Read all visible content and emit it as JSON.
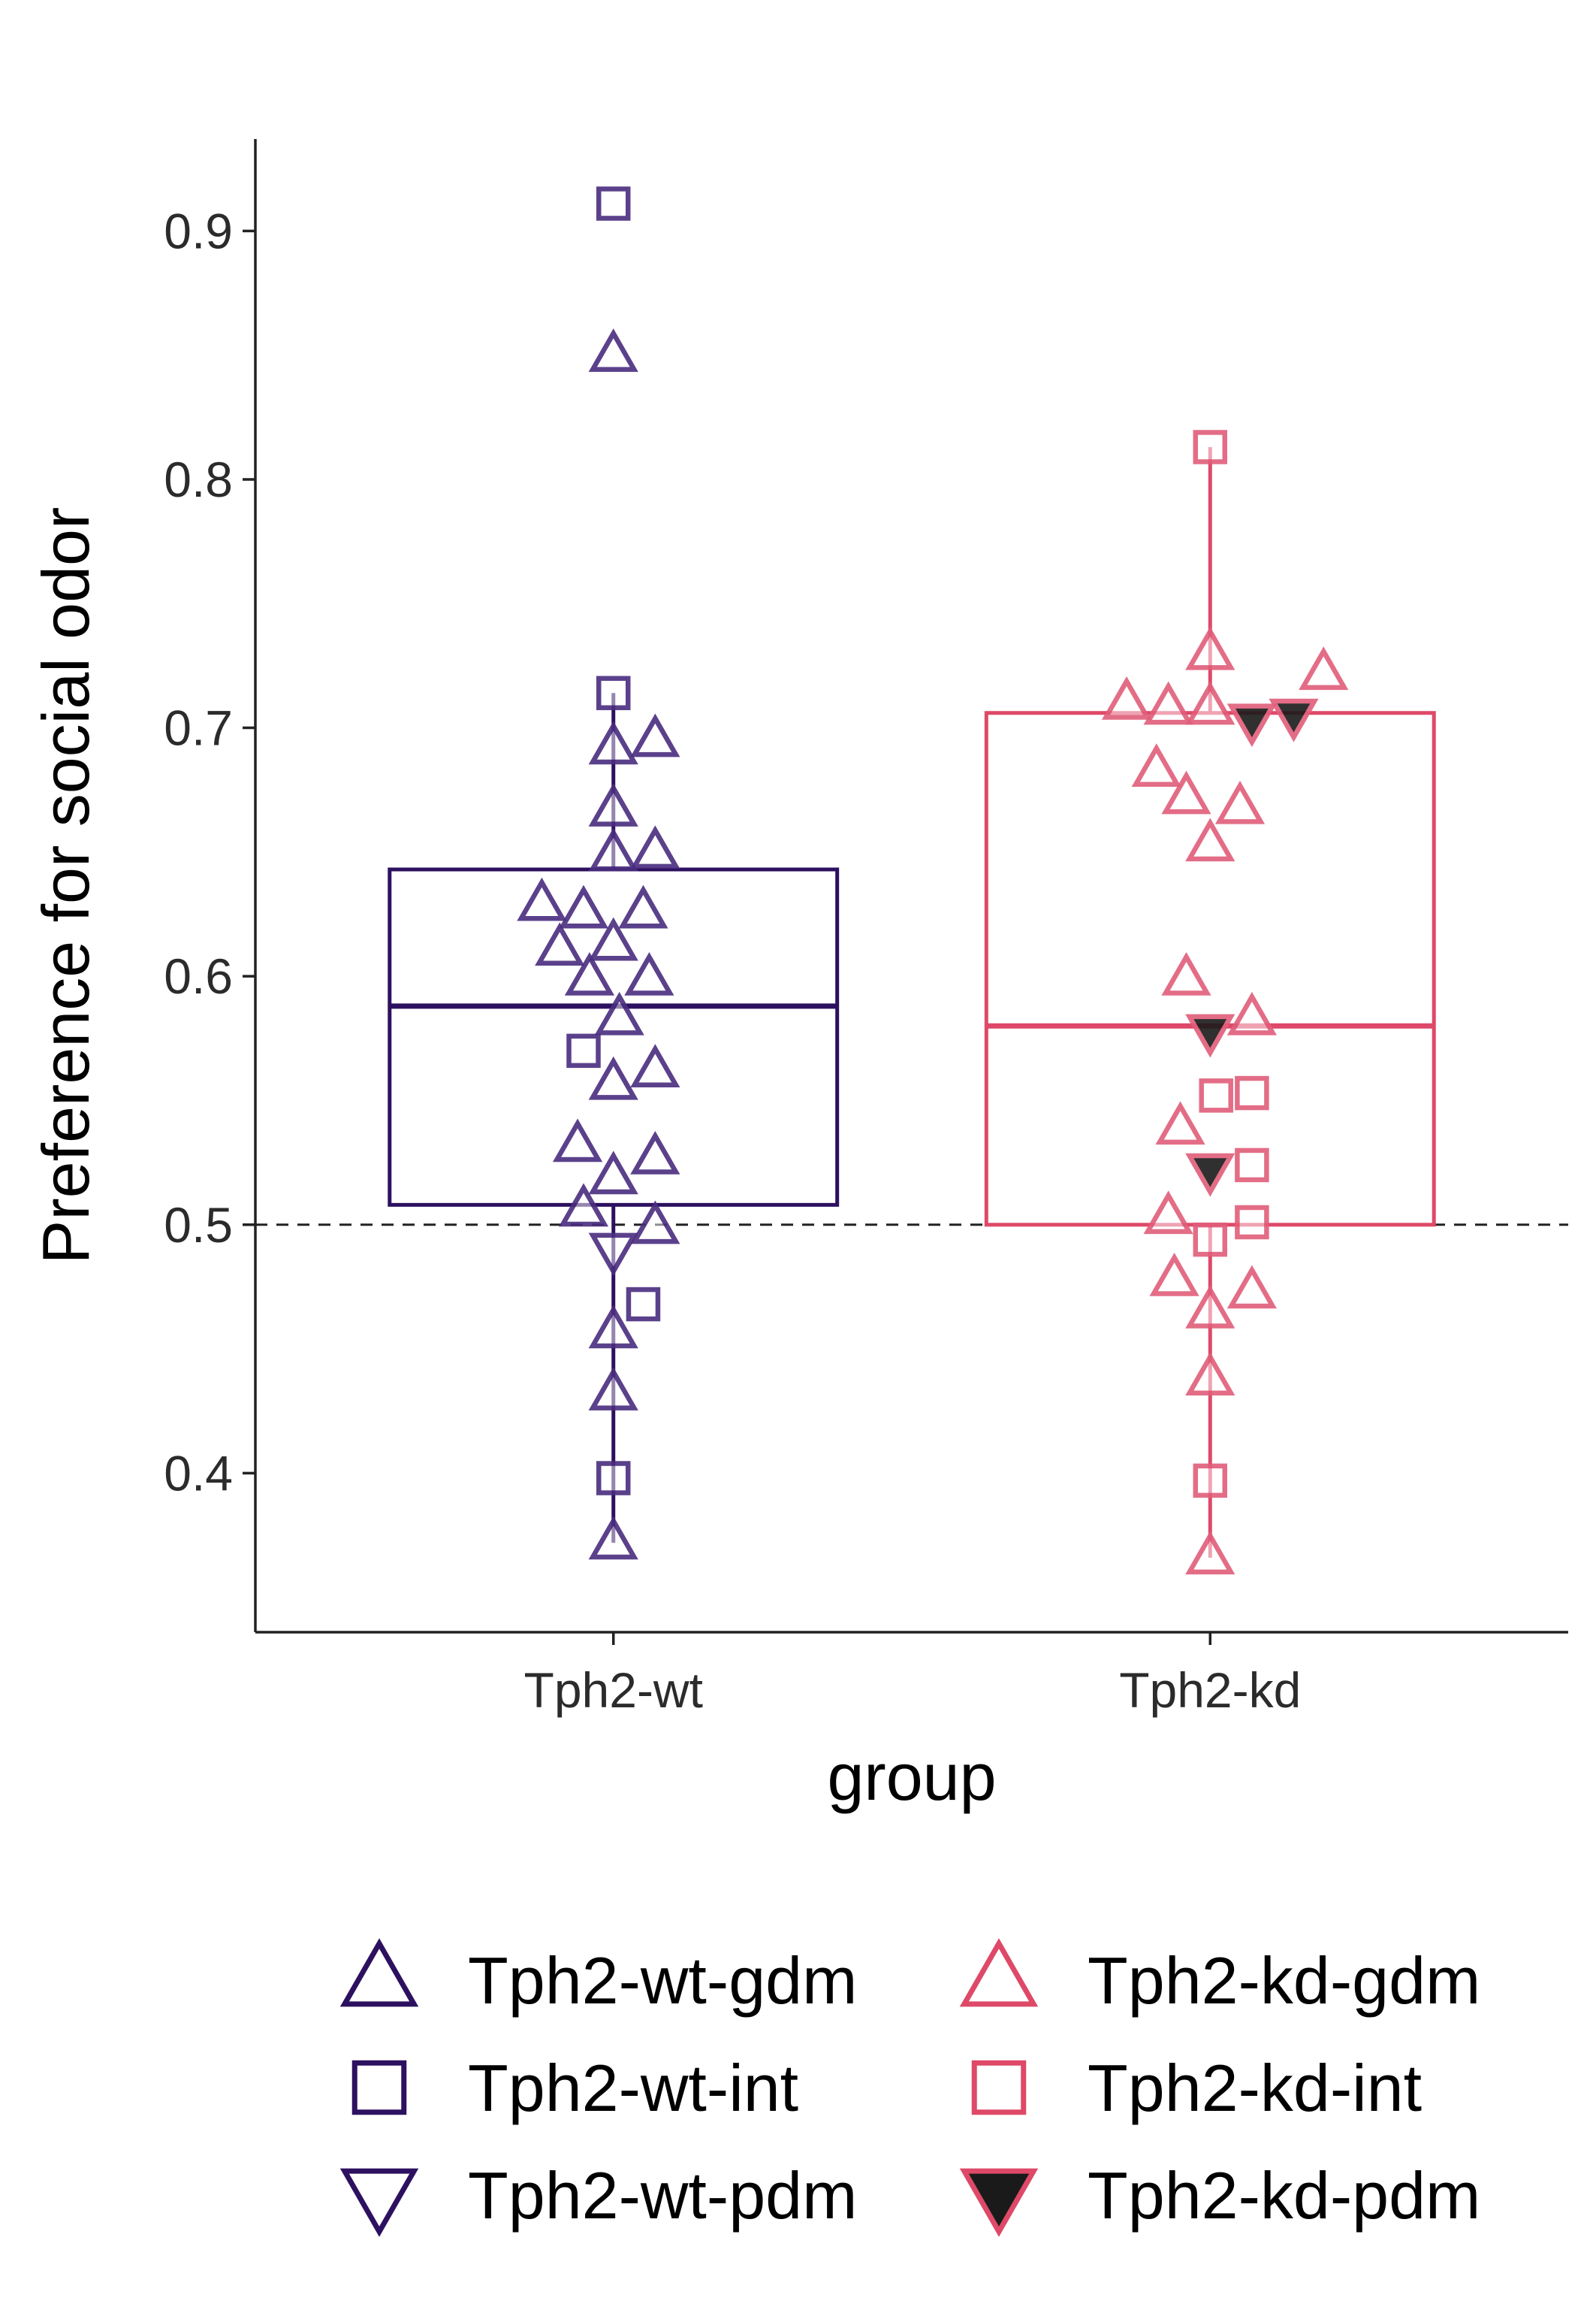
{
  "chart_data": {
    "type": "box",
    "xlabel": "group",
    "ylabel": "Preference for social odor",
    "ylim": [
      0.336,
      0.937
    ],
    "yticks": [
      "0.4",
      "0.5",
      "0.6",
      "0.7",
      "0.8",
      "0.9"
    ],
    "categories": [
      "Tph2-wt",
      "Tph2-kd"
    ],
    "reference_line": 0.5,
    "groups": [
      {
        "name": "Tph2-wt",
        "color": "#2d1160",
        "box": {
          "lower": 0.372,
          "q1": 0.508,
          "median": 0.588,
          "q3": 0.643,
          "upper": 0.714
        },
        "points": [
          {
            "x": 0.0,
            "y": 0.911,
            "shape": "square",
            "fill": "none"
          },
          {
            "x": 0.0,
            "y": 0.85,
            "shape": "triangle-up",
            "fill": "none"
          },
          {
            "x": 0.0,
            "y": 0.714,
            "shape": "square",
            "fill": "none"
          },
          {
            "x": 0.0,
            "y": 0.692,
            "shape": "triangle-up",
            "fill": "none"
          },
          {
            "x": 0.07,
            "y": 0.695,
            "shape": "triangle-up",
            "fill": "none"
          },
          {
            "x": 0.0,
            "y": 0.667,
            "shape": "triangle-up",
            "fill": "none"
          },
          {
            "x": 0.0,
            "y": 0.649,
            "shape": "triangle-up",
            "fill": "none"
          },
          {
            "x": 0.07,
            "y": 0.65,
            "shape": "triangle-up",
            "fill": "none"
          },
          {
            "x": -0.12,
            "y": 0.629,
            "shape": "triangle-up",
            "fill": "none"
          },
          {
            "x": -0.05,
            "y": 0.626,
            "shape": "triangle-up",
            "fill": "none"
          },
          {
            "x": 0.05,
            "y": 0.626,
            "shape": "triangle-up",
            "fill": "none"
          },
          {
            "x": -0.09,
            "y": 0.611,
            "shape": "triangle-up",
            "fill": "none"
          },
          {
            "x": 0.0,
            "y": 0.613,
            "shape": "triangle-up",
            "fill": "none"
          },
          {
            "x": -0.04,
            "y": 0.599,
            "shape": "triangle-up",
            "fill": "none"
          },
          {
            "x": 0.06,
            "y": 0.599,
            "shape": "triangle-up",
            "fill": "none"
          },
          {
            "x": 0.01,
            "y": 0.583,
            "shape": "triangle-up",
            "fill": "none"
          },
          {
            "x": -0.05,
            "y": 0.57,
            "shape": "square",
            "fill": "none"
          },
          {
            "x": 0.0,
            "y": 0.557,
            "shape": "triangle-up",
            "fill": "none"
          },
          {
            "x": 0.07,
            "y": 0.562,
            "shape": "triangle-up",
            "fill": "none"
          },
          {
            "x": -0.06,
            "y": 0.532,
            "shape": "triangle-up",
            "fill": "none"
          },
          {
            "x": 0.07,
            "y": 0.527,
            "shape": "triangle-up",
            "fill": "none"
          },
          {
            "x": 0.0,
            "y": 0.519,
            "shape": "triangle-up",
            "fill": "none"
          },
          {
            "x": -0.05,
            "y": 0.506,
            "shape": "triangle-up",
            "fill": "none"
          },
          {
            "x": 0.07,
            "y": 0.499,
            "shape": "triangle-up",
            "fill": "none"
          },
          {
            "x": 0.0,
            "y": 0.49,
            "shape": "triangle-down",
            "fill": "none"
          },
          {
            "x": 0.05,
            "y": 0.468,
            "shape": "square",
            "fill": "none"
          },
          {
            "x": 0.0,
            "y": 0.457,
            "shape": "triangle-up",
            "fill": "none"
          },
          {
            "x": 0.0,
            "y": 0.432,
            "shape": "triangle-up",
            "fill": "none"
          },
          {
            "x": 0.0,
            "y": 0.398,
            "shape": "square",
            "fill": "none"
          },
          {
            "x": 0.0,
            "y": 0.372,
            "shape": "triangle-up",
            "fill": "none"
          }
        ]
      },
      {
        "name": "Tph2-kd",
        "color": "#de4968",
        "box": {
          "lower": 0.366,
          "q1": 0.5,
          "median": 0.58,
          "q3": 0.706,
          "upper": 0.813
        },
        "points": [
          {
            "x": 0.0,
            "y": 0.813,
            "shape": "square",
            "fill": "none"
          },
          {
            "x": 0.0,
            "y": 0.73,
            "shape": "triangle-up",
            "fill": "none"
          },
          {
            "x": 0.19,
            "y": 0.722,
            "shape": "triangle-up",
            "fill": "none"
          },
          {
            "x": -0.14,
            "y": 0.71,
            "shape": "triangle-up",
            "fill": "none"
          },
          {
            "x": -0.07,
            "y": 0.708,
            "shape": "triangle-up",
            "fill": "none"
          },
          {
            "x": 0.0,
            "y": 0.708,
            "shape": "triangle-up",
            "fill": "none"
          },
          {
            "x": 0.07,
            "y": 0.703,
            "shape": "triangle-down",
            "fill": "#1a1a1a"
          },
          {
            "x": 0.14,
            "y": 0.705,
            "shape": "triangle-down",
            "fill": "#1a1a1a"
          },
          {
            "x": -0.09,
            "y": 0.683,
            "shape": "triangle-up",
            "fill": "none"
          },
          {
            "x": -0.04,
            "y": 0.672,
            "shape": "triangle-up",
            "fill": "none"
          },
          {
            "x": 0.05,
            "y": 0.668,
            "shape": "triangle-up",
            "fill": "none"
          },
          {
            "x": 0.0,
            "y": 0.653,
            "shape": "triangle-up",
            "fill": "none"
          },
          {
            "x": -0.04,
            "y": 0.599,
            "shape": "triangle-up",
            "fill": "none"
          },
          {
            "x": 0.07,
            "y": 0.583,
            "shape": "triangle-up",
            "fill": "none"
          },
          {
            "x": 0.0,
            "y": 0.578,
            "shape": "triangle-down",
            "fill": "#1a1a1a"
          },
          {
            "x": 0.07,
            "y": 0.553,
            "shape": "square",
            "fill": "none"
          },
          {
            "x": 0.01,
            "y": 0.552,
            "shape": "square",
            "fill": "none"
          },
          {
            "x": -0.05,
            "y": 0.539,
            "shape": "triangle-up",
            "fill": "none"
          },
          {
            "x": 0.0,
            "y": 0.522,
            "shape": "triangle-down",
            "fill": "#1a1a1a"
          },
          {
            "x": 0.07,
            "y": 0.524,
            "shape": "square",
            "fill": "none"
          },
          {
            "x": -0.07,
            "y": 0.503,
            "shape": "triangle-up",
            "fill": "none"
          },
          {
            "x": 0.07,
            "y": 0.501,
            "shape": "square",
            "fill": "none"
          },
          {
            "x": 0.0,
            "y": 0.494,
            "shape": "square",
            "fill": "none"
          },
          {
            "x": -0.06,
            "y": 0.478,
            "shape": "triangle-up",
            "fill": "none"
          },
          {
            "x": 0.07,
            "y": 0.473,
            "shape": "triangle-up",
            "fill": "none"
          },
          {
            "x": 0.0,
            "y": 0.465,
            "shape": "triangle-up",
            "fill": "none"
          },
          {
            "x": 0.0,
            "y": 0.438,
            "shape": "triangle-up",
            "fill": "none"
          },
          {
            "x": 0.0,
            "y": 0.397,
            "shape": "square",
            "fill": "none"
          },
          {
            "x": 0.0,
            "y": 0.366,
            "shape": "triangle-up",
            "fill": "none"
          }
        ]
      }
    ],
    "legend": {
      "placement": "bottom",
      "entries": [
        {
          "label": "Tph2-wt-gdm",
          "shape": "triangle-up",
          "color": "#2d1160",
          "fill": "none"
        },
        {
          "label": "Tph2-kd-gdm",
          "shape": "triangle-up",
          "color": "#de4968",
          "fill": "none"
        },
        {
          "label": "Tph2-wt-int",
          "shape": "square",
          "color": "#2d1160",
          "fill": "none"
        },
        {
          "label": "Tph2-kd-int",
          "shape": "square",
          "color": "#de4968",
          "fill": "none"
        },
        {
          "label": "Tph2-wt-pdm",
          "shape": "triangle-down",
          "color": "#2d1160",
          "fill": "none"
        },
        {
          "label": "Tph2-kd-pdm",
          "shape": "triangle-down",
          "color": "#de4968",
          "fill": "#1a1a1a"
        }
      ]
    }
  }
}
